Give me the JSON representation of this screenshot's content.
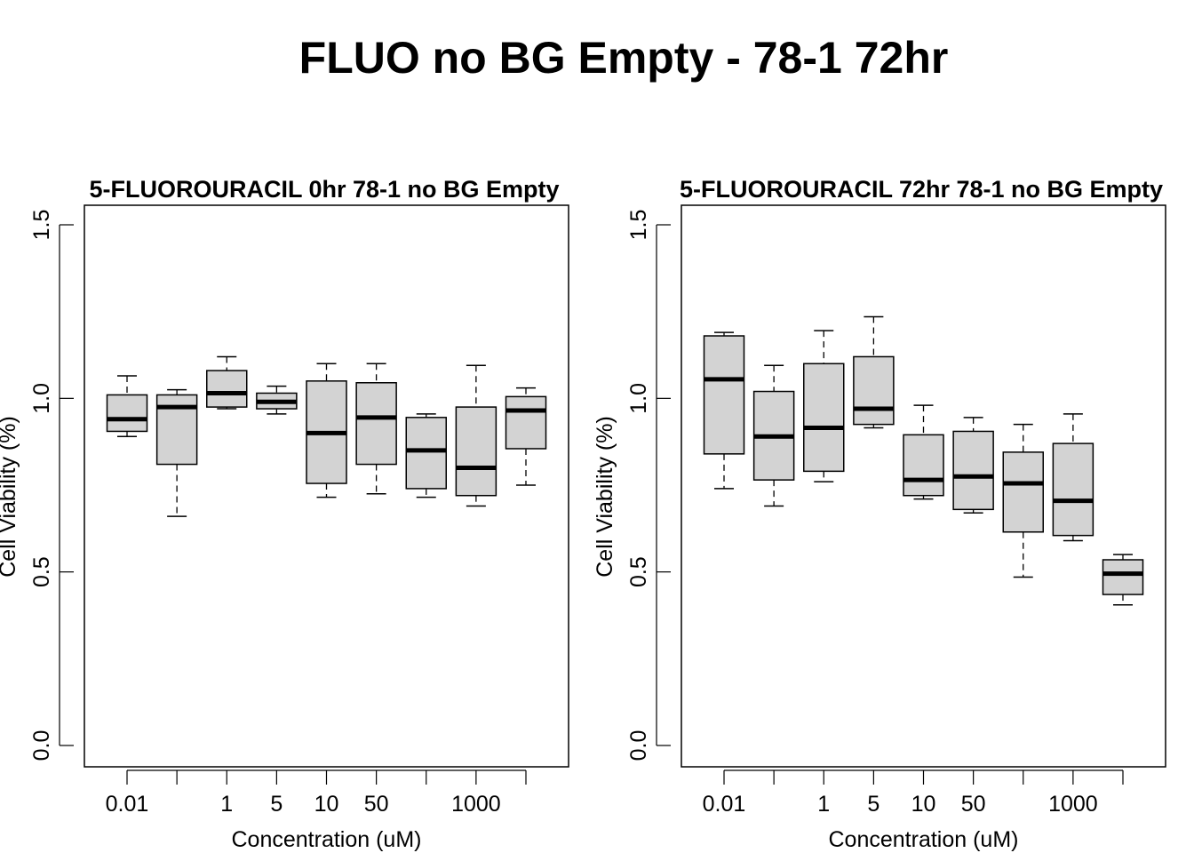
{
  "figure": {
    "title": "FLUO no BG Empty - 78-1 72hr"
  },
  "chart_data": [
    {
      "type": "boxplot",
      "title": "5-FLUOROURACIL 0hr 78-1 no BG Empty",
      "xlabel": "Concentration (uM)",
      "ylabel": "Cell Viability (%)",
      "ylim": [
        0,
        1.5
      ],
      "yticks": [
        "0.0",
        "0.5",
        "1.0",
        "1.5"
      ],
      "categories": [
        "0.01",
        "",
        "1",
        "5",
        "10",
        "50",
        "",
        "1000",
        ""
      ],
      "boxes": [
        {
          "min": 0.89,
          "q1": 0.905,
          "median": 0.94,
          "q3": 1.01,
          "max": 1.065
        },
        {
          "min": 0.66,
          "q1": 0.81,
          "median": 0.975,
          "q3": 1.01,
          "max": 1.025
        },
        {
          "min": 0.97,
          "q1": 0.975,
          "median": 1.015,
          "q3": 1.08,
          "max": 1.12
        },
        {
          "min": 0.955,
          "q1": 0.97,
          "median": 0.99,
          "q3": 1.015,
          "max": 1.035
        },
        {
          "min": 0.715,
          "q1": 0.755,
          "median": 0.9,
          "q3": 1.05,
          "max": 1.1
        },
        {
          "min": 0.725,
          "q1": 0.81,
          "median": 0.945,
          "q3": 1.045,
          "max": 1.1
        },
        {
          "min": 0.715,
          "q1": 0.74,
          "median": 0.85,
          "q3": 0.945,
          "max": 0.955
        },
        {
          "min": 0.69,
          "q1": 0.72,
          "median": 0.8,
          "q3": 0.975,
          "max": 1.095
        },
        {
          "min": 0.75,
          "q1": 0.855,
          "median": 0.965,
          "q3": 1.005,
          "max": 1.03
        }
      ],
      "box_fill": "#d3d3d3"
    },
    {
      "type": "boxplot",
      "title": "5-FLUOROURACIL 72hr 78-1 no BG Empty",
      "xlabel": "Concentration (uM)",
      "ylabel": "Cell Viability (%)",
      "ylim": [
        0,
        1.5
      ],
      "yticks": [
        "0.0",
        "0.5",
        "1.0",
        "1.5"
      ],
      "categories": [
        "0.01",
        "",
        "1",
        "5",
        "10",
        "50",
        "",
        "1000",
        ""
      ],
      "boxes": [
        {
          "min": 0.74,
          "q1": 0.84,
          "median": 1.055,
          "q3": 1.18,
          "max": 1.19
        },
        {
          "min": 0.69,
          "q1": 0.765,
          "median": 0.89,
          "q3": 1.02,
          "max": 1.095
        },
        {
          "min": 0.76,
          "q1": 0.79,
          "median": 0.915,
          "q3": 1.1,
          "max": 1.195
        },
        {
          "min": 0.915,
          "q1": 0.925,
          "median": 0.97,
          "q3": 1.12,
          "max": 1.235
        },
        {
          "min": 0.71,
          "q1": 0.72,
          "median": 0.765,
          "q3": 0.895,
          "max": 0.98
        },
        {
          "min": 0.67,
          "q1": 0.68,
          "median": 0.775,
          "q3": 0.905,
          "max": 0.945
        },
        {
          "min": 0.485,
          "q1": 0.615,
          "median": 0.755,
          "q3": 0.845,
          "max": 0.925
        },
        {
          "min": 0.59,
          "q1": 0.605,
          "median": 0.705,
          "q3": 0.87,
          "max": 0.955
        },
        {
          "min": 0.405,
          "q1": 0.435,
          "median": 0.495,
          "q3": 0.535,
          "max": 0.55
        }
      ],
      "box_fill": "#d3d3d3"
    }
  ]
}
